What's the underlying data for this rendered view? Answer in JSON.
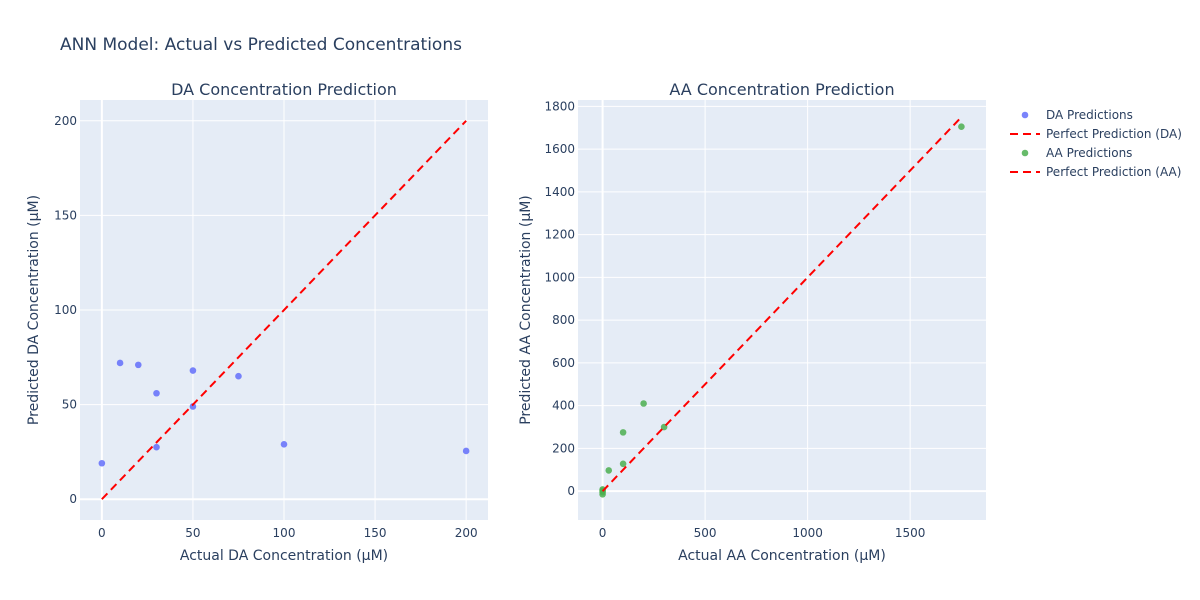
{
  "figure": {
    "title": "ANN Model: Actual vs Predicted Concentrations"
  },
  "chart_data": [
    {
      "type": "scatter",
      "title": "DA Concentration Prediction",
      "xlabel": "Actual DA Concentration (µM)",
      "ylabel": "Predicted DA Concentration (µM)",
      "xlim": [
        -12,
        212
      ],
      "ylim": [
        -11,
        211
      ],
      "xticks": [
        0,
        50,
        100,
        150,
        200
      ],
      "yticks": [
        0,
        50,
        100,
        150,
        200
      ],
      "grid": true,
      "series": [
        {
          "name": "DA Predictions",
          "mode": "markers",
          "color": "#636efa",
          "x": [
            0,
            10,
            20,
            30,
            30,
            50,
            50,
            75,
            100,
            200
          ],
          "y": [
            19,
            72,
            71,
            56,
            27.5,
            68,
            49,
            65,
            29,
            25.5
          ]
        },
        {
          "name": "Perfect Prediction (DA)",
          "mode": "lines",
          "dash": "dash",
          "color": "#ff0000",
          "x": [
            0,
            200
          ],
          "y": [
            0,
            200
          ]
        }
      ]
    },
    {
      "type": "scatter",
      "title": "AA Concentration Prediction",
      "xlabel": "Actual AA Concentration (µM)",
      "ylabel": "Predicted AA Concentration (µM)",
      "xlim": [
        -120,
        1870
      ],
      "ylim": [
        -135,
        1830
      ],
      "xticks": [
        0,
        500,
        1000,
        1500
      ],
      "yticks": [
        0,
        200,
        400,
        600,
        800,
        1000,
        1200,
        1400,
        1600,
        1800
      ],
      "grid": true,
      "series": [
        {
          "name": "AA Predictions",
          "mode": "markers",
          "color": "#4caf50",
          "x": [
            0,
            0,
            0,
            0,
            30,
            100,
            100,
            200,
            300,
            1750
          ],
          "y": [
            -15,
            -5,
            2,
            8,
            97,
            128,
            275,
            410,
            300,
            1705
          ]
        },
        {
          "name": "Perfect Prediction (AA)",
          "mode": "lines",
          "dash": "dash",
          "color": "#ff0000",
          "x": [
            0,
            1750
          ],
          "y": [
            0,
            1750
          ]
        }
      ]
    }
  ],
  "legend": {
    "placement": "top-right",
    "items": [
      {
        "label": "DA Predictions",
        "kind": "marker",
        "color": "#636efa"
      },
      {
        "label": "Perfect Prediction (DA)",
        "kind": "dash",
        "color": "#ff0000"
      },
      {
        "label": "AA Predictions",
        "kind": "marker",
        "color": "#4caf50"
      },
      {
        "label": "Perfect Prediction (AA)",
        "kind": "dash",
        "color": "#ff0000"
      }
    ]
  },
  "colors": {
    "plot_bg": "#e5ecf6",
    "grid": "#ffffff",
    "text": "#2a3f5f"
  }
}
